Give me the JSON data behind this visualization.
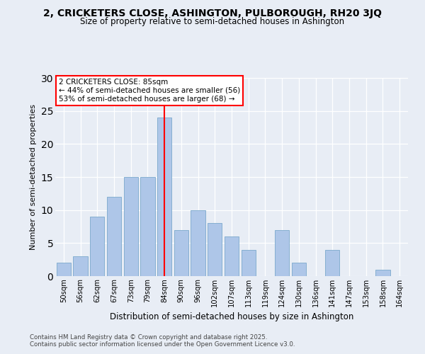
{
  "title1": "2, CRICKETERS CLOSE, ASHINGTON, PULBOROUGH, RH20 3JQ",
  "title2": "Size of property relative to semi-detached houses in Ashington",
  "xlabel": "Distribution of semi-detached houses by size in Ashington",
  "ylabel": "Number of semi-detached properties",
  "bins": [
    "50sqm",
    "56sqm",
    "62sqm",
    "67sqm",
    "73sqm",
    "79sqm",
    "84sqm",
    "90sqm",
    "96sqm",
    "102sqm",
    "107sqm",
    "113sqm",
    "119sqm",
    "124sqm",
    "130sqm",
    "136sqm",
    "141sqm",
    "147sqm",
    "153sqm",
    "158sqm",
    "164sqm"
  ],
  "values": [
    2,
    3,
    9,
    12,
    15,
    15,
    24,
    7,
    10,
    8,
    6,
    4,
    0,
    7,
    2,
    0,
    4,
    0,
    0,
    1,
    0
  ],
  "bar_color": "#aec6e8",
  "bar_edge_color": "#7aa8cc",
  "red_line_x": 6,
  "annotation_title": "2 CRICKETERS CLOSE: 85sqm",
  "annotation_line1": "← 44% of semi-detached houses are smaller (56)",
  "annotation_line2": "53% of semi-detached houses are larger (68) →",
  "ylim": [
    0,
    30
  ],
  "yticks": [
    0,
    5,
    10,
    15,
    20,
    25,
    30
  ],
  "footer1": "Contains HM Land Registry data © Crown copyright and database right 2025.",
  "footer2": "Contains public sector information licensed under the Open Government Licence v3.0.",
  "bg_color": "#e8edf5",
  "plot_bg_color": "#e8edf5"
}
